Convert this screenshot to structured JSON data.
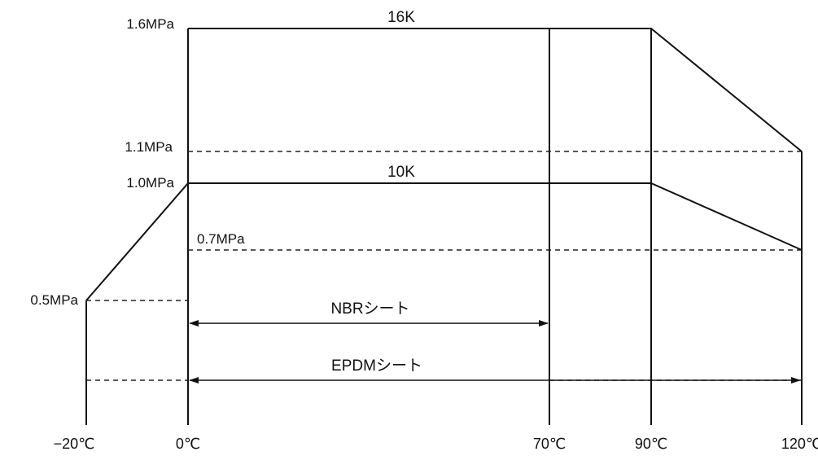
{
  "chart_data": {
    "type": "line",
    "title": "",
    "xlabel": "",
    "ylabel": "",
    "x_ticks": [
      {
        "value": -20,
        "label": "−20℃"
      },
      {
        "value": 0,
        "label": "0℃"
      },
      {
        "value": 70,
        "label": "70℃"
      },
      {
        "value": 90,
        "label": "90℃"
      },
      {
        "value": 120,
        "label": "120℃"
      }
    ],
    "y_ticks": [
      {
        "value": 0.5,
        "label": "0.5MPa"
      },
      {
        "value": 0.7,
        "label": "0.7MPa"
      },
      {
        "value": 1.0,
        "label": "1.0MPa"
      },
      {
        "value": 1.1,
        "label": "1.1MPa"
      },
      {
        "value": 1.6,
        "label": "1.6MPa"
      }
    ],
    "series": [
      {
        "name": "16K",
        "points": [
          [
            0,
            1.6
          ],
          [
            90,
            1.6
          ],
          [
            120,
            1.1
          ]
        ]
      },
      {
        "name": "10K",
        "points": [
          [
            -20,
            0.5
          ],
          [
            0,
            1.0
          ],
          [
            90,
            1.0
          ],
          [
            120,
            0.7
          ]
        ]
      }
    ],
    "ranges": [
      {
        "label": "NBRシート",
        "x_from": 0,
        "x_to": 70
      },
      {
        "label": "EPDMシート",
        "x_from": 0,
        "x_to": 120
      }
    ]
  }
}
